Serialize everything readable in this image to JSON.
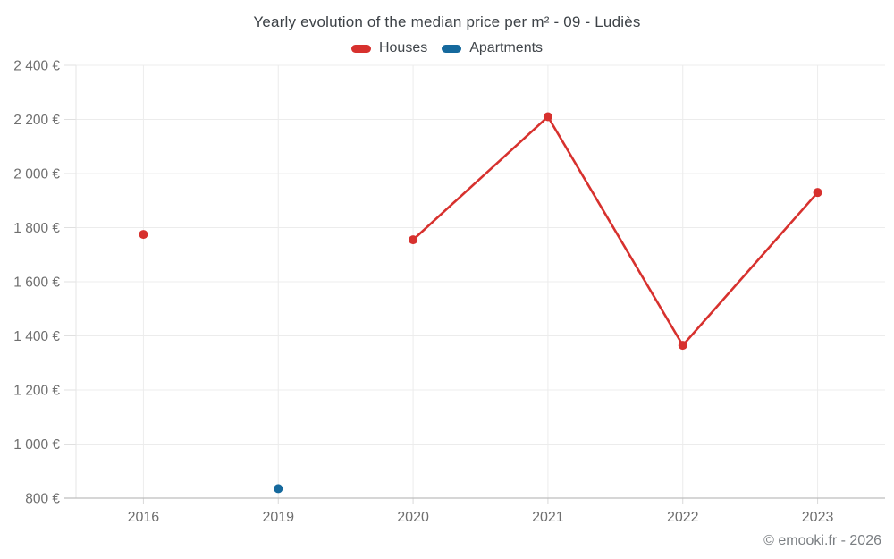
{
  "footer": "© emooki.fr - 2026",
  "chart_data": {
    "type": "line",
    "title": "Yearly evolution of the median price per m² - 09 - Ludiès",
    "categories": [
      "2016",
      "2019",
      "2020",
      "2021",
      "2022",
      "2023"
    ],
    "series": [
      {
        "name": "Houses",
        "color": "#d7312e",
        "values": [
          1775,
          null,
          1755,
          2210,
          1365,
          1930
        ]
      },
      {
        "name": "Apartments",
        "color": "#15699d",
        "values": [
          null,
          835,
          null,
          null,
          null,
          null
        ]
      }
    ],
    "ylim": [
      800,
      2400
    ],
    "ytick_step": 200,
    "ytick_labels": [
      "800 €",
      "1 000 €",
      "1 200 €",
      "1 400 €",
      "1 600 €",
      "1 800 €",
      "2 000 €",
      "2 200 €",
      "2 400 €"
    ],
    "grid": true,
    "legend_position": "top",
    "unit": "€"
  }
}
